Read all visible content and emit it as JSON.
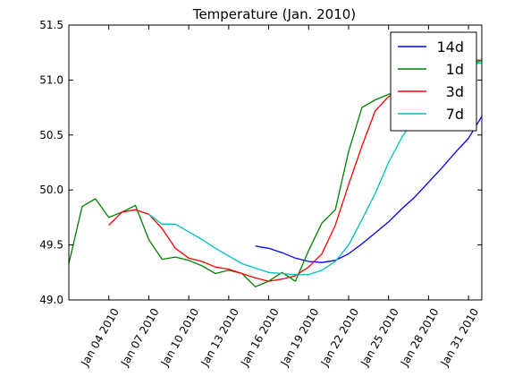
{
  "chart_data": {
    "type": "line",
    "title": "Temperature (Jan. 2010)",
    "xlabel": "",
    "ylabel": "",
    "ylim": [
      49.0,
      51.5
    ],
    "xlim": [
      "2010-01-01",
      "2010-02-01"
    ],
    "y_ticks": [
      "49.0",
      "49.5",
      "50.0",
      "50.5",
      "51.0",
      "51.5"
    ],
    "x_ticks": [
      {
        "date": "2010-01-04",
        "label": "Jan 04 2010"
      },
      {
        "date": "2010-01-07",
        "label": "Jan 07 2010"
      },
      {
        "date": "2010-01-10",
        "label": "Jan 10 2010"
      },
      {
        "date": "2010-01-13",
        "label": "Jan 13 2010"
      },
      {
        "date": "2010-01-16",
        "label": "Jan 16 2010"
      },
      {
        "date": "2010-01-19",
        "label": "Jan 19 2010"
      },
      {
        "date": "2010-01-22",
        "label": "Jan 22 2010"
      },
      {
        "date": "2010-01-25",
        "label": "Jan 25 2010"
      },
      {
        "date": "2010-01-28",
        "label": "Jan 28 2010"
      },
      {
        "date": "2010-01-31",
        "label": "Jan 31 2010"
      }
    ],
    "grid": false,
    "legend_position": "top-right",
    "series": [
      {
        "name": "14d",
        "color": "#0000ff",
        "x": [
          "2010-01-15",
          "2010-01-16",
          "2010-01-17",
          "2010-01-18",
          "2010-01-19",
          "2010-01-20",
          "2010-01-21",
          "2010-01-22",
          "2010-01-23",
          "2010-01-24",
          "2010-01-25",
          "2010-01-26",
          "2010-01-27",
          "2010-01-28",
          "2010-01-29",
          "2010-01-30",
          "2010-01-31",
          "2010-02-01"
        ],
        "y": [
          49.49,
          49.47,
          49.43,
          49.38,
          49.35,
          49.34,
          49.36,
          49.42,
          49.51,
          49.61,
          49.71,
          49.83,
          49.94,
          50.07,
          50.2,
          50.34,
          50.47,
          50.67
        ]
      },
      {
        "name": "1d",
        "color": "#008000",
        "x": [
          "2010-01-01",
          "2010-01-02",
          "2010-01-03",
          "2010-01-04",
          "2010-01-05",
          "2010-01-06",
          "2010-01-07",
          "2010-01-08",
          "2010-01-09",
          "2010-01-10",
          "2010-01-11",
          "2010-01-12",
          "2010-01-13",
          "2010-01-14",
          "2010-01-15",
          "2010-01-16",
          "2010-01-17",
          "2010-01-18",
          "2010-01-19",
          "2010-01-20",
          "2010-01-21",
          "2010-01-22",
          "2010-01-23",
          "2010-01-24",
          "2010-01-25",
          "2010-01-26",
          "2010-01-27",
          "2010-01-28",
          "2010-01-29",
          "2010-01-30",
          "2010-01-31",
          "2010-02-01"
        ],
        "y": [
          49.33,
          49.85,
          49.92,
          49.75,
          49.8,
          49.86,
          49.55,
          49.37,
          49.39,
          49.36,
          49.31,
          49.24,
          49.27,
          49.24,
          49.12,
          49.17,
          49.25,
          49.17,
          49.45,
          49.7,
          49.82,
          50.35,
          50.75,
          50.82,
          50.87,
          50.92,
          50.95,
          51.0,
          51.05,
          51.1,
          51.13,
          51.18
        ]
      },
      {
        "name": "3d",
        "color": "#ff0000",
        "x": [
          "2010-01-04",
          "2010-01-05",
          "2010-01-06",
          "2010-01-07",
          "2010-01-08",
          "2010-01-09",
          "2010-01-10",
          "2010-01-11",
          "2010-01-12",
          "2010-01-13",
          "2010-01-14",
          "2010-01-15",
          "2010-01-16",
          "2010-01-17",
          "2010-01-18",
          "2010-01-19",
          "2010-01-20",
          "2010-01-21",
          "2010-01-22",
          "2010-01-23",
          "2010-01-24",
          "2010-01-25",
          "2010-01-26",
          "2010-01-27",
          "2010-01-28",
          "2010-01-29",
          "2010-01-30",
          "2010-01-31",
          "2010-02-01"
        ],
        "y": [
          49.68,
          49.8,
          49.82,
          49.78,
          49.65,
          49.47,
          49.38,
          49.35,
          49.3,
          49.28,
          49.24,
          49.2,
          49.17,
          49.19,
          49.22,
          49.3,
          49.42,
          49.68,
          50.05,
          50.4,
          50.72,
          50.85,
          50.9,
          50.96,
          51.03,
          51.1,
          51.15,
          51.18,
          51.18
        ]
      },
      {
        "name": "7d",
        "color": "#00bfbf",
        "x": [
          "2010-01-07",
          "2010-01-08",
          "2010-01-09",
          "2010-01-10",
          "2010-01-11",
          "2010-01-12",
          "2010-01-13",
          "2010-01-14",
          "2010-01-15",
          "2010-01-16",
          "2010-01-17",
          "2010-01-18",
          "2010-01-19",
          "2010-01-20",
          "2010-01-21",
          "2010-01-22",
          "2010-01-23",
          "2010-01-24",
          "2010-01-25",
          "2010-01-26",
          "2010-01-27",
          "2010-01-28",
          "2010-01-29",
          "2010-01-30",
          "2010-01-31",
          "2010-02-01"
        ],
        "y": [
          49.78,
          49.69,
          49.69,
          49.62,
          49.55,
          49.47,
          49.4,
          49.33,
          49.29,
          49.25,
          49.24,
          49.23,
          49.23,
          49.27,
          49.35,
          49.5,
          49.73,
          49.97,
          50.25,
          50.48,
          50.66,
          50.8,
          50.92,
          51.05,
          51.13,
          51.16
        ]
      }
    ]
  }
}
